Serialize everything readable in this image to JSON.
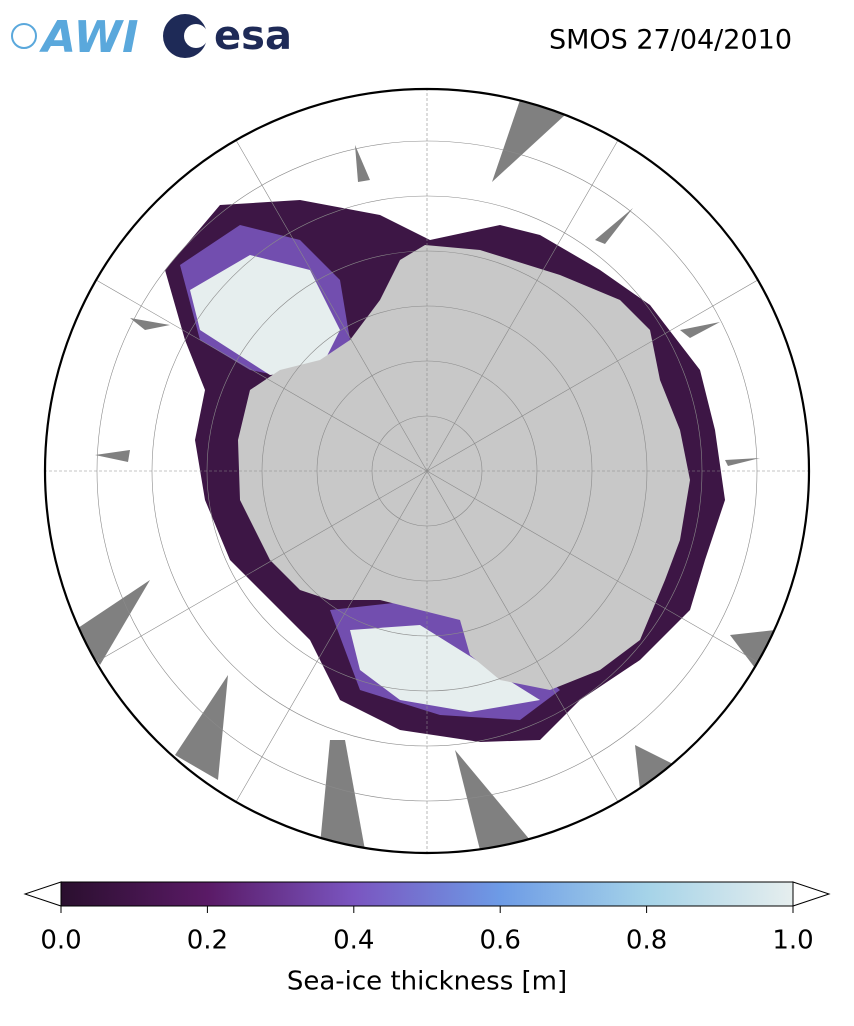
{
  "header": {
    "logo_left": "AWI",
    "logo_right": "esa",
    "title": "SMOS 27/04/2010"
  },
  "colorbar": {
    "label": "Sea-ice thickness [m]",
    "lim": [
      0,
      1
    ],
    "ticks": [
      {
        "value": 0,
        "label": "0.0"
      },
      {
        "value": 0.2,
        "label": "0.2"
      },
      {
        "value": 0.4,
        "label": "0.4"
      },
      {
        "value": 0.6,
        "label": "0.6"
      },
      {
        "value": 0.8,
        "label": "0.8"
      },
      {
        "value": 1,
        "label": "1.0"
      }
    ],
    "colors": [
      "#2a0f2e",
      "#5a1a66",
      "#7a55c0",
      "#6d9be6",
      "#a5d3e8",
      "#e6eeee"
    ]
  }
}
